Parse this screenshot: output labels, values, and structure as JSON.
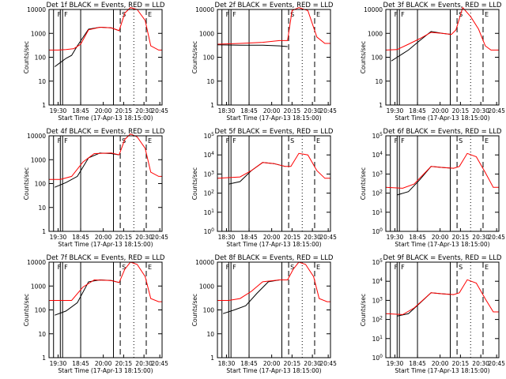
{
  "figure": {
    "start_time_label": "Start Time (17-Apr-13 18:15:00)",
    "ylabel": "Counts/sec",
    "x_ticks": [
      "19:30",
      "18:45",
      "20:00",
      "20:15",
      "20:30",
      "20:45"
    ],
    "x_ticks_alt": [
      "18:30",
      "18:45",
      "20:00",
      "20:15",
      "20:30",
      "20:45"
    ],
    "flag_letters": [
      "F",
      "F",
      "S",
      "E"
    ]
  },
  "colors": {
    "events": "#000000",
    "lld": "#ff0000"
  },
  "chart_data": [
    {
      "type": "line",
      "title": "Det 1f BLACK = Events, RED = LLD",
      "xlabel": "Start Time (17-Apr-13 18:15:00)",
      "ylabel": "Counts/sec",
      "x_ticks": [
        "19:30",
        "18:45",
        "20:00",
        "20:15",
        "20:30",
        "20:45"
      ],
      "y_scale": "log",
      "y_ticks": [
        "1",
        "10",
        "100",
        "1000",
        "10000"
      ],
      "ylim": [
        1,
        10000
      ],
      "series": [
        {
          "name": "Events",
          "color": "#000000",
          "x": [
            0.05,
            0.1,
            0.15,
            0.2,
            0.25,
            0.35,
            0.45,
            0.55,
            0.62
          ],
          "y": [
            40,
            60,
            90,
            120,
            300,
            1500,
            1800,
            1700,
            1300
          ]
        },
        {
          "name": "LLD",
          "color": "#ff0000",
          "x": [
            0.0,
            0.08,
            0.15,
            0.22,
            0.28,
            0.35,
            0.45,
            0.55,
            0.62,
            0.67,
            0.72,
            0.78,
            0.85,
            0.9,
            0.97,
            1.0
          ],
          "y": [
            200,
            200,
            210,
            230,
            350,
            1400,
            1800,
            1700,
            1300,
            7000,
            12000,
            10000,
            3500,
            300,
            200,
            200
          ]
        }
      ]
    },
    {
      "type": "line",
      "title": "Det 2f BLACK = Events, RED = LLD",
      "xlabel": "Start Time (17-Apr-13 18:15:00)",
      "ylabel": "Counts/sec",
      "x_ticks": [
        "18:30",
        "18:45",
        "20:00",
        "20:15",
        "20:30",
        "20:45"
      ],
      "y_scale": "log",
      "y_ticks": [
        "1",
        "10",
        "100",
        "1000",
        "10000"
      ],
      "ylim": [
        1,
        10000
      ],
      "series": [
        {
          "name": "Events",
          "color": "#000000",
          "x": [
            0.0,
            0.2,
            0.4,
            0.55,
            0.62
          ],
          "y": [
            330,
            320,
            320,
            300,
            280
          ]
        },
        {
          "name": "LLD",
          "color": "#ff0000",
          "x": [
            0.0,
            0.2,
            0.4,
            0.55,
            0.62,
            0.66,
            0.72,
            0.8,
            0.88,
            0.95,
            1.0
          ],
          "y": [
            350,
            380,
            420,
            500,
            500,
            9000,
            12000,
            9000,
            700,
            380,
            380
          ]
        }
      ]
    },
    {
      "type": "line",
      "title": "Det 3f BLACK = Events, RED = LLD",
      "xlabel": "Start Time (17-Apr-13 18:15:00)",
      "ylabel": "Counts/sec",
      "x_ticks": [
        "19:30",
        "18:45",
        "20:00",
        "20:15",
        "20:30",
        "20:45"
      ],
      "y_scale": "log",
      "y_ticks": [
        "1",
        "10",
        "100",
        "1000",
        "10000"
      ],
      "ylim": [
        1,
        10000
      ],
      "series": [
        {
          "name": "Events",
          "color": "#000000",
          "x": [
            0.05,
            0.1,
            0.2,
            0.3,
            0.4,
            0.5,
            0.58
          ],
          "y": [
            70,
            100,
            200,
            500,
            1200,
            1000,
            900
          ]
        },
        {
          "name": "LLD",
          "color": "#ff0000",
          "x": [
            0.0,
            0.1,
            0.2,
            0.3,
            0.4,
            0.5,
            0.58,
            0.62,
            0.68,
            0.75,
            0.82,
            0.88,
            0.93,
            1.0
          ],
          "y": [
            200,
            210,
            350,
            600,
            1100,
            1000,
            900,
            1400,
            12000,
            5000,
            1500,
            300,
            200,
            200
          ]
        }
      ]
    },
    {
      "type": "line",
      "title": "Det 4f BLACK = Events, RED = LLD",
      "xlabel": "Start Time (17-Apr-13 18:15:00)",
      "ylabel": "Counts/sec",
      "x_ticks": [
        "19:30",
        "18:45",
        "20:00",
        "20:15",
        "20:30",
        "20:45"
      ],
      "y_scale": "log",
      "y_ticks": [
        "1",
        "10",
        "100",
        "1000",
        "10000"
      ],
      "ylim": [
        1,
        10000
      ],
      "series": [
        {
          "name": "Events",
          "color": "#000000",
          "x": [
            0.05,
            0.15,
            0.25,
            0.35,
            0.45,
            0.55,
            0.62
          ],
          "y": [
            70,
            110,
            200,
            1200,
            1900,
            1800,
            1600
          ]
        },
        {
          "name": "LLD",
          "color": "#ff0000",
          "x": [
            0.0,
            0.1,
            0.2,
            0.3,
            0.4,
            0.55,
            0.62,
            0.67,
            0.72,
            0.78,
            0.85,
            0.9,
            0.97,
            1.0
          ],
          "y": [
            150,
            150,
            200,
            800,
            1800,
            1900,
            1600,
            7000,
            12000,
            9000,
            3000,
            300,
            200,
            200
          ]
        }
      ]
    },
    {
      "type": "line",
      "title": "Det 5f BLACK = Events, RED = LLD",
      "xlabel": "Start Time (17-Apr-13 18:15:00)",
      "ylabel": "Counts/sec",
      "x_ticks": [
        "18:30",
        "18:45",
        "20:00",
        "20:15",
        "20:30",
        "20:45"
      ],
      "y_scale": "log",
      "y_ticks": [
        "10^0",
        "10^1",
        "10^2",
        "10^3",
        "10^4",
        "10^5"
      ],
      "ylim": [
        1,
        100000
      ],
      "series": [
        {
          "name": "Events",
          "color": "#000000",
          "x": [
            0.1,
            0.2,
            0.3,
            0.4,
            0.5,
            0.6
          ],
          "y": [
            300,
            400,
            1500,
            4000,
            3500,
            2500
          ]
        },
        {
          "name": "LLD",
          "color": "#ff0000",
          "x": [
            0.0,
            0.2,
            0.3,
            0.4,
            0.5,
            0.6,
            0.65,
            0.72,
            0.8,
            0.88,
            0.95,
            1.0
          ],
          "y": [
            600,
            700,
            1500,
            4000,
            3500,
            2500,
            2500,
            12000,
            10000,
            1500,
            600,
            600
          ]
        }
      ]
    },
    {
      "type": "line",
      "title": "Det 6f BLACK = Events, RED = LLD",
      "xlabel": "Start Time (17-Apr-13 18:15:00)",
      "ylabel": "Counts/sec",
      "x_ticks": [
        "19:30",
        "18:45",
        "20:00",
        "20:15",
        "20:30",
        "20:45"
      ],
      "y_scale": "log",
      "y_ticks": [
        "10^0",
        "10^1",
        "10^2",
        "10^3",
        "10^4",
        "10^5"
      ],
      "ylim": [
        1,
        100000
      ],
      "series": [
        {
          "name": "Events",
          "color": "#000000",
          "x": [
            0.1,
            0.2,
            0.3,
            0.4,
            0.5,
            0.6
          ],
          "y": [
            80,
            120,
            500,
            2500,
            2200,
            2000
          ]
        },
        {
          "name": "LLD",
          "color": "#ff0000",
          "x": [
            0.0,
            0.15,
            0.25,
            0.4,
            0.5,
            0.6,
            0.65,
            0.72,
            0.8,
            0.88,
            0.95,
            1.0
          ],
          "y": [
            200,
            180,
            300,
            2500,
            2200,
            2000,
            2500,
            12000,
            8000,
            1200,
            200,
            200
          ]
        }
      ]
    },
    {
      "type": "line",
      "title": "Det 7f BLACK = Events, RED = LLD",
      "xlabel": "Start Time (17-Apr-13 18:15:00)",
      "ylabel": "Counts/sec",
      "x_ticks": [
        "19:30",
        "18:45",
        "20:00",
        "20:15",
        "20:30",
        "20:45"
      ],
      "y_scale": "log",
      "y_ticks": [
        "1",
        "10",
        "100",
        "1000",
        "10000"
      ],
      "ylim": [
        1,
        10000
      ],
      "series": [
        {
          "name": "Events",
          "color": "#000000",
          "x": [
            0.05,
            0.15,
            0.25,
            0.35,
            0.45,
            0.55,
            0.62
          ],
          "y": [
            60,
            90,
            200,
            1500,
            1800,
            1700,
            1400
          ]
        },
        {
          "name": "LLD",
          "color": "#ff0000",
          "x": [
            0.0,
            0.1,
            0.2,
            0.3,
            0.4,
            0.55,
            0.62,
            0.67,
            0.72,
            0.78,
            0.85,
            0.9,
            0.97,
            1.0
          ],
          "y": [
            250,
            250,
            250,
            900,
            1800,
            1700,
            1400,
            5000,
            10000,
            8000,
            2500,
            300,
            220,
            220
          ]
        }
      ]
    },
    {
      "type": "line",
      "title": "Det 8f BLACK = Events, RED = LLD",
      "xlabel": "Start Time (17-Apr-13 18:15:00)",
      "ylabel": "Counts/sec",
      "x_ticks": [
        "18:30",
        "18:45",
        "20:00",
        "20:15",
        "20:30",
        "20:45"
      ],
      "y_scale": "log",
      "y_ticks": [
        "1",
        "10",
        "100",
        "1000",
        "10000"
      ],
      "ylim": [
        1,
        10000
      ],
      "series": [
        {
          "name": "Events",
          "color": "#000000",
          "x": [
            0.05,
            0.15,
            0.25,
            0.35,
            0.45,
            0.55,
            0.62
          ],
          "y": [
            70,
            100,
            150,
            500,
            1500,
            1800,
            1800
          ]
        },
        {
          "name": "LLD",
          "color": "#ff0000",
          "x": [
            0.0,
            0.1,
            0.2,
            0.3,
            0.4,
            0.55,
            0.62,
            0.67,
            0.72,
            0.78,
            0.85,
            0.9,
            0.97,
            1.0
          ],
          "y": [
            250,
            250,
            300,
            600,
            1500,
            1800,
            1800,
            5000,
            10000,
            8000,
            2500,
            300,
            220,
            220
          ]
        }
      ]
    },
    {
      "type": "line",
      "title": "Det 9f BLACK = Events, RED = LLD",
      "xlabel": "Start Time (17-Apr-13 18:15:00)",
      "ylabel": "Counts/sec",
      "x_ticks": [
        "19:30",
        "18:45",
        "20:00",
        "20:15",
        "20:30",
        "20:45"
      ],
      "y_scale": "log",
      "y_ticks": [
        "10^0",
        "10^1",
        "10^2",
        "10^3",
        "10^4",
        "10^5"
      ],
      "ylim": [
        1,
        100000
      ],
      "series": [
        {
          "name": "Events",
          "color": "#000000",
          "x": [
            0.1,
            0.2,
            0.3,
            0.4,
            0.5,
            0.6
          ],
          "y": [
            150,
            200,
            700,
            2500,
            2200,
            2000
          ]
        },
        {
          "name": "LLD",
          "color": "#ff0000",
          "x": [
            0.0,
            0.15,
            0.25,
            0.4,
            0.5,
            0.6,
            0.65,
            0.72,
            0.8,
            0.88,
            0.95,
            1.0
          ],
          "y": [
            200,
            180,
            400,
            2500,
            2200,
            2000,
            2500,
            12000,
            8000,
            1200,
            250,
            250
          ]
        }
      ]
    }
  ]
}
